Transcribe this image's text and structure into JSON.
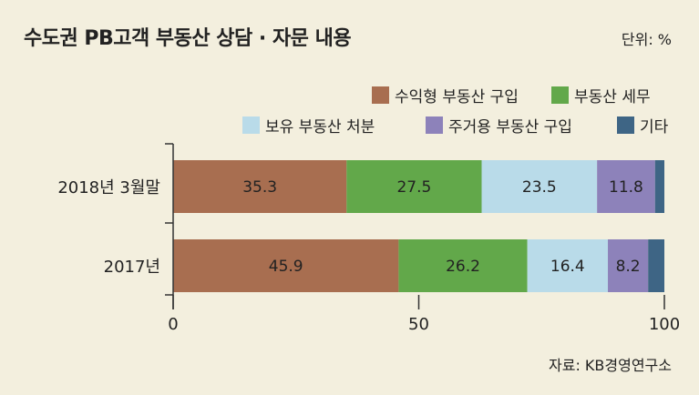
{
  "header": {
    "title": "수도권 PB고객 부동산 상담 · 자문 내용",
    "unit": "단위: %"
  },
  "footer": {
    "source": "자료: KB경영연구소"
  },
  "chart_data": {
    "type": "bar",
    "orientation": "horizontal",
    "stacked": true,
    "categories": [
      "2018년 3월말",
      "2017년"
    ],
    "series": [
      {
        "name": "수익형 부동산 구입",
        "values": [
          35.3,
          45.9
        ],
        "color": "#a86e50",
        "labels": [
          "35.3",
          "45.9"
        ]
      },
      {
        "name": "부동산 세무",
        "values": [
          27.5,
          26.2
        ],
        "color": "#62a84a",
        "labels": [
          "27.5",
          "26.2"
        ]
      },
      {
        "name": "보유 부동산 처분",
        "values": [
          23.5,
          16.4
        ],
        "color": "#b9dbe9",
        "labels": [
          "23.5",
          "16.4"
        ]
      },
      {
        "name": "주거용 부동산 구입",
        "values": [
          11.8,
          8.2
        ],
        "color": "#8d82ba",
        "labels": [
          "11.8",
          "8.2"
        ]
      },
      {
        "name": "기타",
        "values": [
          1.9,
          3.3
        ],
        "color": "#3e6585",
        "labels": [
          "",
          ""
        ]
      }
    ],
    "xlim": [
      0,
      100
    ],
    "xticks": [
      "0",
      "50",
      "100"
    ],
    "legend_position": "top-right",
    "grid": false
  }
}
